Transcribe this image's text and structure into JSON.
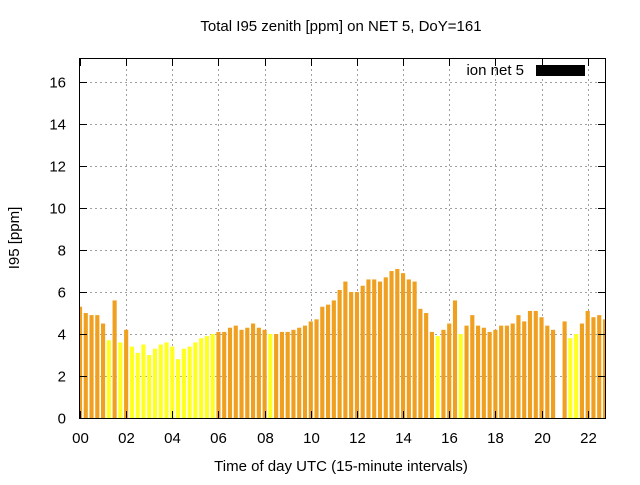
{
  "chart_data": {
    "type": "bar",
    "title": "Total I95 zenith [ppm] on NET 5, DoY=161",
    "xlabel": "Time of day UTC (15-minute intervals)",
    "ylabel": "I95 [ppm]",
    "xlim": [
      0,
      22.75
    ],
    "ylim": [
      0,
      17.1
    ],
    "xticks": [
      "00",
      "02",
      "04",
      "06",
      "08",
      "10",
      "12",
      "14",
      "16",
      "18",
      "20",
      "22"
    ],
    "xtick_values": [
      0,
      2,
      4,
      6,
      8,
      10,
      12,
      14,
      16,
      18,
      20,
      22
    ],
    "yticks": [
      "0",
      "2",
      "4",
      "6",
      "8",
      "10",
      "12",
      "14",
      "16"
    ],
    "ytick_values": [
      0,
      2,
      4,
      6,
      8,
      10,
      12,
      14,
      16
    ],
    "grid": true,
    "legend": {
      "position": "top-right",
      "label": "ion net 5",
      "color": "#000000"
    },
    "colors": {
      "orange": "#f0a020",
      "yellow": "#ffff20",
      "legend": "#000000",
      "grid": "#a0a0a0"
    },
    "interval_hours": 0.25,
    "x": [
      0.0,
      0.25,
      0.5,
      0.75,
      1.0,
      1.25,
      1.5,
      1.75,
      2.0,
      2.25,
      2.5,
      2.75,
      3.0,
      3.25,
      3.5,
      3.75,
      4.0,
      4.25,
      4.5,
      4.75,
      5.0,
      5.25,
      5.5,
      5.75,
      6.0,
      6.25,
      6.5,
      6.75,
      7.0,
      7.25,
      7.5,
      7.75,
      8.0,
      8.25,
      8.5,
      8.75,
      9.0,
      9.25,
      9.5,
      9.75,
      10.0,
      10.25,
      10.5,
      10.75,
      11.0,
      11.25,
      11.5,
      11.75,
      12.0,
      12.25,
      12.5,
      12.75,
      13.0,
      13.25,
      13.5,
      13.75,
      14.0,
      14.25,
      14.5,
      14.75,
      15.0,
      15.25,
      15.5,
      15.75,
      16.0,
      16.25,
      16.5,
      16.75,
      17.0,
      17.25,
      17.5,
      17.75,
      18.0,
      18.25,
      18.5,
      18.75,
      19.0,
      19.25,
      19.5,
      19.75,
      20.0,
      20.25,
      20.5,
      20.75,
      21.0,
      21.25,
      21.5,
      21.75,
      22.0,
      22.25,
      22.5,
      22.75
    ],
    "values": [
      5.3,
      5.0,
      4.9,
      4.9,
      4.5,
      3.7,
      5.6,
      3.6,
      4.2,
      3.4,
      3.1,
      3.5,
      3.0,
      3.3,
      3.5,
      3.6,
      3.4,
      2.8,
      3.3,
      3.4,
      3.6,
      3.8,
      3.9,
      4.0,
      4.1,
      4.1,
      4.3,
      4.4,
      4.2,
      4.3,
      4.5,
      4.3,
      4.2,
      4.0,
      4.0,
      4.1,
      4.1,
      4.2,
      4.3,
      4.4,
      4.6,
      4.7,
      5.3,
      5.4,
      5.6,
      6.1,
      6.5,
      6.0,
      6.0,
      6.3,
      6.6,
      6.6,
      6.5,
      6.7,
      7.0,
      7.1,
      6.9,
      6.6,
      6.5,
      5.2,
      5.0,
      4.1,
      3.9,
      4.2,
      4.5,
      5.6,
      4.0,
      4.4,
      4.9,
      4.4,
      4.3,
      4.1,
      4.2,
      4.4,
      4.4,
      4.5,
      4.9,
      4.6,
      5.1,
      5.1,
      4.8,
      4.4,
      4.2,
      0.0,
      4.6,
      3.8,
      4.0,
      4.5,
      5.1,
      4.8,
      4.9,
      4.7
    ],
    "bar_colors": [
      "orange",
      "orange",
      "orange",
      "orange",
      "orange",
      "yellow",
      "orange",
      "yellow",
      "orange",
      "yellow",
      "yellow",
      "yellow",
      "yellow",
      "yellow",
      "yellow",
      "yellow",
      "yellow",
      "yellow",
      "yellow",
      "yellow",
      "yellow",
      "yellow",
      "yellow",
      "yellow",
      "orange",
      "orange",
      "orange",
      "orange",
      "orange",
      "orange",
      "orange",
      "orange",
      "orange",
      "yellow",
      "orange",
      "orange",
      "orange",
      "orange",
      "orange",
      "orange",
      "orange",
      "orange",
      "orange",
      "orange",
      "orange",
      "orange",
      "orange",
      "orange",
      "orange",
      "orange",
      "orange",
      "orange",
      "orange",
      "orange",
      "orange",
      "orange",
      "orange",
      "orange",
      "orange",
      "orange",
      "orange",
      "orange",
      "yellow",
      "orange",
      "orange",
      "orange",
      "yellow",
      "orange",
      "orange",
      "orange",
      "orange",
      "orange",
      "orange",
      "orange",
      "orange",
      "orange",
      "orange",
      "orange",
      "orange",
      "orange",
      "orange",
      "orange",
      "orange",
      "orange",
      "orange",
      "yellow",
      "yellow",
      "orange",
      "orange",
      "orange",
      "orange",
      "orange"
    ]
  }
}
